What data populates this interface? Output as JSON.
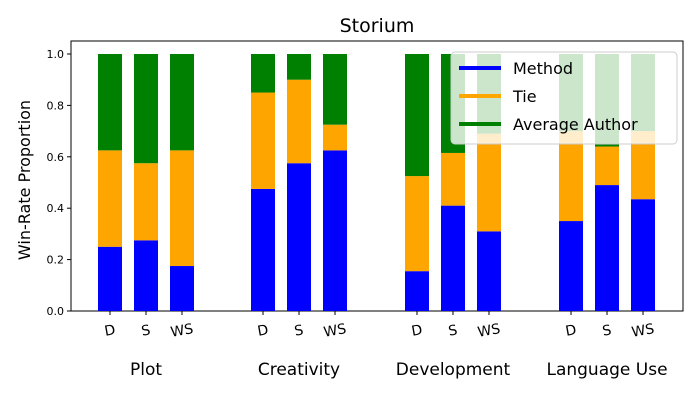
{
  "chart_data": {
    "type": "bar",
    "title": "Storium",
    "ylabel": "Win-Rate Proportion",
    "xlabel": "",
    "ylim": [
      0,
      1.05
    ],
    "yticks": [
      "0.0",
      "0.2",
      "0.4",
      "0.6",
      "0.8",
      "1.0"
    ],
    "groups": [
      {
        "label": "Plot",
        "bars": [
          {
            "label": "D",
            "method": 0.25,
            "tie": 0.375,
            "author": 0.375
          },
          {
            "label": "S",
            "method": 0.275,
            "tie": 0.3,
            "author": 0.425
          },
          {
            "label": "WS",
            "method": 0.175,
            "tie": 0.45,
            "author": 0.375
          }
        ]
      },
      {
        "label": "Creativity",
        "bars": [
          {
            "label": "D",
            "method": 0.475,
            "tie": 0.375,
            "author": 0.15
          },
          {
            "label": "S",
            "method": 0.575,
            "tie": 0.325,
            "author": 0.1
          },
          {
            "label": "WS",
            "method": 0.625,
            "tie": 0.1,
            "author": 0.275
          }
        ]
      },
      {
        "label": "Development",
        "bars": [
          {
            "label": "D",
            "method": 0.155,
            "tie": 0.37,
            "author": 0.475
          },
          {
            "label": "S",
            "method": 0.41,
            "tie": 0.205,
            "author": 0.385
          },
          {
            "label": "WS",
            "method": 0.31,
            "tie": 0.38,
            "author": 0.31
          }
        ]
      },
      {
        "label": "Language Use",
        "bars": [
          {
            "label": "D",
            "method": 0.35,
            "tie": 0.35,
            "author": 0.3
          },
          {
            "label": "S",
            "method": 0.49,
            "tie": 0.15,
            "author": 0.36
          },
          {
            "label": "WS",
            "method": 0.435,
            "tie": 0.265,
            "author": 0.3
          }
        ]
      }
    ],
    "series": [
      {
        "key": "method",
        "name": "Method",
        "color": "#0000ff"
      },
      {
        "key": "tie",
        "name": "Tie",
        "color": "#ffa500"
      },
      {
        "key": "author",
        "name": "Average Author",
        "color": "#008000"
      }
    ],
    "legend_position": "top-right",
    "legend_overlap_note_colors": {
      "faded_green": "#cce5cc",
      "faded_orange": "#ffe4b3"
    }
  }
}
